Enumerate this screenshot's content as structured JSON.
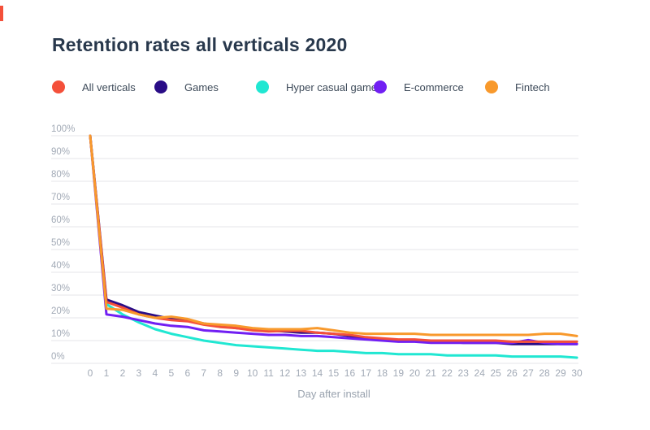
{
  "accent_color": "#F4503A",
  "header": {
    "title": "Retention rates all verticals 2020"
  },
  "legend": [
    {
      "label": "All verticals",
      "color": "#F4503A"
    },
    {
      "label": "Games",
      "color": "#290C86"
    },
    {
      "label": "Hyper casual games",
      "color": "#20E7D2"
    },
    {
      "label": "E-commerce",
      "color": "#711FF3"
    },
    {
      "label": "Fintech",
      "color": "#F8992C"
    }
  ],
  "chart_data": {
    "type": "line",
    "title": "Retention rates all verticals 2020",
    "xlabel": "Day after install",
    "ylabel": "",
    "ylim": [
      0,
      100
    ],
    "y_ticks": [
      0,
      10,
      20,
      30,
      40,
      50,
      60,
      70,
      80,
      90,
      100
    ],
    "y_tick_suffix": "%",
    "grid": true,
    "legend_position": "top",
    "x": [
      0,
      1,
      2,
      3,
      4,
      5,
      6,
      7,
      8,
      9,
      10,
      11,
      12,
      13,
      14,
      15,
      16,
      17,
      18,
      19,
      20,
      21,
      22,
      23,
      24,
      25,
      26,
      27,
      28,
      29,
      30
    ],
    "series": [
      {
        "name": "All verticals",
        "color": "#F4503A",
        "values": [
          100,
          27,
          24.5,
          21.5,
          20,
          19,
          18.5,
          17,
          16,
          15.5,
          14.5,
          14,
          14.3,
          14.3,
          13.5,
          13,
          12.5,
          11.5,
          11,
          10.5,
          10.5,
          10,
          10,
          10,
          10,
          10,
          9.5,
          9.5,
          9.5,
          9.5,
          9.5
        ]
      },
      {
        "name": "Games",
        "color": "#290C86",
        "values": [
          100,
          28,
          25.5,
          22.5,
          21,
          19.5,
          19,
          17.5,
          16.5,
          15.5,
          15,
          14.5,
          14,
          13.5,
          13.5,
          13,
          12,
          11,
          10.5,
          10,
          10,
          9.5,
          9.5,
          9,
          9,
          9,
          8.5,
          8.5,
          8.5,
          8.5,
          8.5
        ]
      },
      {
        "name": "Hyper casual games",
        "color": "#20E7D2",
        "values": [
          100,
          26,
          21.5,
          18,
          15,
          13,
          11.5,
          10,
          9,
          8,
          7.5,
          7,
          6.5,
          6,
          5.5,
          5.5,
          5,
          4.5,
          4.5,
          4,
          4,
          4,
          3.5,
          3.5,
          3.5,
          3.5,
          3,
          3,
          3,
          3,
          2.5
        ]
      },
      {
        "name": "E-commerce",
        "color": "#711FF3",
        "values": [
          100,
          21.5,
          20.5,
          19,
          17.5,
          16.5,
          16,
          14.5,
          14,
          13.5,
          13,
          12.5,
          12.5,
          12,
          12,
          11.5,
          11,
          10.5,
          10,
          9.5,
          9.5,
          9,
          9,
          9,
          9,
          9,
          9,
          10.2,
          9,
          8.5,
          8.5
        ]
      },
      {
        "name": "Fintech",
        "color": "#F8992C",
        "values": [
          100,
          24,
          23.5,
          21.5,
          20,
          20.5,
          19.5,
          17.5,
          17,
          16.5,
          15.5,
          15,
          15,
          15,
          15.5,
          14.5,
          13.5,
          13,
          13,
          13,
          13,
          12.5,
          12.5,
          12.5,
          12.5,
          12.5,
          12.5,
          12.5,
          13,
          13,
          12
        ]
      }
    ]
  }
}
